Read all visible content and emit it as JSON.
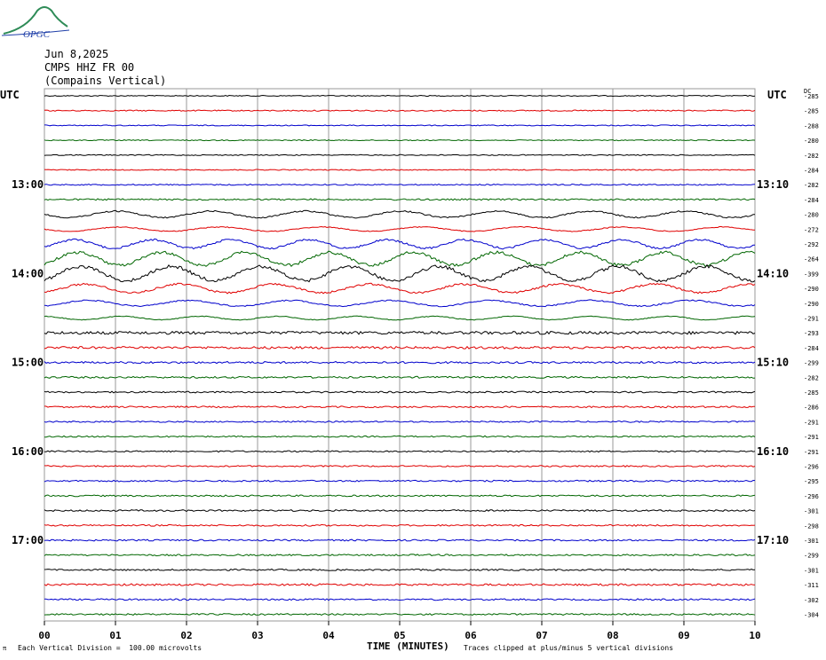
{
  "header": {
    "date": "Jun 8,2025",
    "station": "CMPS HHZ FR 00",
    "location": "(Compains Vertical)",
    "logo_text": "OPGC"
  },
  "utc_left": "UTC",
  "utc_right": "UTC",
  "dc_label": "DC",
  "footer": {
    "mark": "π",
    "left": "Each Vertical Division =  100.00 microvolts",
    "xlabel": "TIME (MINUTES)",
    "right": "Traces clipped at plus/minus 5 vertical divisions"
  },
  "colors": {
    "trace_cycle": [
      "#000000",
      "#e00000",
      "#0000cc",
      "#006600"
    ],
    "grid": "#9a9a9a",
    "logo_green": "#2e8b57",
    "logo_blue": "#1f3fa8"
  },
  "chart_data": {
    "type": "helicorder",
    "xlim": [
      0,
      10
    ],
    "x_ticks": [
      "00",
      "01",
      "02",
      "03",
      "04",
      "05",
      "06",
      "07",
      "08",
      "09",
      "10"
    ],
    "xlabel": "TIME (MINUTES)",
    "left_time_labels": [
      {
        "row": 6,
        "label": "13:00"
      },
      {
        "row": 12,
        "label": "14:00"
      },
      {
        "row": 18,
        "label": "15:00"
      },
      {
        "row": 24,
        "label": "16:00"
      },
      {
        "row": 30,
        "label": "17:00"
      }
    ],
    "right_time_labels": [
      {
        "row": 6,
        "label": "13:10"
      },
      {
        "row": 12,
        "label": "14:10"
      },
      {
        "row": 18,
        "label": "15:10"
      },
      {
        "row": 24,
        "label": "16:10"
      },
      {
        "row": 30,
        "label": "17:10"
      }
    ],
    "traces": [
      {
        "dc": "-285",
        "amp": 0.5
      },
      {
        "dc": "-285",
        "amp": 0.6
      },
      {
        "dc": "-288",
        "amp": 0.5
      },
      {
        "dc": "-280",
        "amp": 0.5
      },
      {
        "dc": "-282",
        "amp": 0.5
      },
      {
        "dc": "-284",
        "amp": 0.5
      },
      {
        "dc": "-282",
        "amp": 0.6
      },
      {
        "dc": "-284",
        "amp": 0.8
      },
      {
        "dc": "-280",
        "amp": 4.5
      },
      {
        "dc": "-272",
        "amp": 3.0
      },
      {
        "dc": "-292",
        "amp": 6.0
      },
      {
        "dc": "-264",
        "amp": 9.0
      },
      {
        "dc": "-399",
        "amp": 10.0
      },
      {
        "dc": "-290",
        "amp": 6.0
      },
      {
        "dc": "-290",
        "amp": 4.0
      },
      {
        "dc": "-291",
        "amp": 2.5
      },
      {
        "dc": "-293",
        "amp": 1.5
      },
      {
        "dc": "-284",
        "amp": 1.2
      },
      {
        "dc": "-299",
        "amp": 1.0
      },
      {
        "dc": "-282",
        "amp": 0.9
      },
      {
        "dc": "-285",
        "amp": 0.8
      },
      {
        "dc": "-286",
        "amp": 0.8
      },
      {
        "dc": "-291",
        "amp": 0.7
      },
      {
        "dc": "-291",
        "amp": 0.7
      },
      {
        "dc": "-291",
        "amp": 0.7
      },
      {
        "dc": "-296",
        "amp": 0.7
      },
      {
        "dc": "-295",
        "amp": 0.8
      },
      {
        "dc": "-296",
        "amp": 0.8
      },
      {
        "dc": "-301",
        "amp": 0.8
      },
      {
        "dc": "-298",
        "amp": 0.8
      },
      {
        "dc": "-301",
        "amp": 0.8
      },
      {
        "dc": "-299",
        "amp": 0.8
      },
      {
        "dc": "-301",
        "amp": 0.8
      },
      {
        "dc": "-311",
        "amp": 1.0
      },
      {
        "dc": "-302",
        "amp": 0.8
      },
      {
        "dc": "-304",
        "amp": 0.8
      }
    ]
  }
}
